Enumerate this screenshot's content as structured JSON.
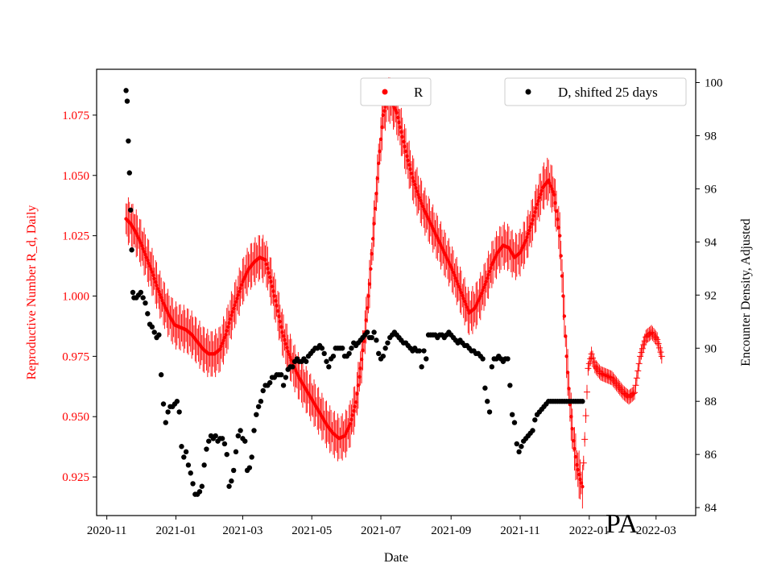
{
  "chart_data": {
    "type": "scatter",
    "title": "",
    "annotation": "PA",
    "xlabel": "Date",
    "ylabel_left": "Reproductive Number R_d, Daily",
    "ylabel_right": "Encounter Density, Adjusted",
    "x_ticks": [
      "2020-11",
      "2021-01",
      "2021-03",
      "2021-05",
      "2021-07",
      "2021-09",
      "2021-11",
      "2022-01",
      "2022-03"
    ],
    "y_left_ticks": [
      "0.925",
      "0.950",
      "0.975",
      "1.000",
      "1.025",
      "1.050",
      "1.075"
    ],
    "y_right_ticks": [
      "84",
      "86",
      "88",
      "90",
      "92",
      "94",
      "96",
      "98",
      "100"
    ],
    "x_range_days": [
      -9,
      520
    ],
    "y_left_range": [
      0.909,
      1.094
    ],
    "y_right_range": [
      83.7,
      100.5
    ],
    "legend_R": "R",
    "legend_D": "D, shifted 25 days",
    "colors": {
      "R": "#ff0000",
      "D": "#000000",
      "left_axis": "#ff0000"
    },
    "R_series": [
      [
        17,
        1.032
      ],
      [
        21,
        1.03
      ],
      [
        25,
        1.027
      ],
      [
        30,
        1.022
      ],
      [
        35,
        1.016
      ],
      [
        40,
        1.01
      ],
      [
        45,
        1.003
      ],
      [
        50,
        0.997
      ],
      [
        55,
        0.992
      ],
      [
        60,
        0.988
      ],
      [
        65,
        0.987
      ],
      [
        70,
        0.986
      ],
      [
        75,
        0.984
      ],
      [
        80,
        0.981
      ],
      [
        85,
        0.978
      ],
      [
        90,
        0.976
      ],
      [
        95,
        0.976
      ],
      [
        100,
        0.978
      ],
      [
        105,
        0.984
      ],
      [
        110,
        0.992
      ],
      [
        115,
        0.999
      ],
      [
        120,
        1.006
      ],
      [
        125,
        1.011
      ],
      [
        130,
        1.014
      ],
      [
        135,
        1.016
      ],
      [
        140,
        1.015
      ],
      [
        145,
        1.006
      ],
      [
        150,
        0.996
      ],
      [
        155,
        0.985
      ],
      [
        160,
        0.977
      ],
      [
        165,
        0.971
      ],
      [
        170,
        0.966
      ],
      [
        175,
        0.962
      ],
      [
        180,
        0.958
      ],
      [
        185,
        0.954
      ],
      [
        190,
        0.95
      ],
      [
        195,
        0.946
      ],
      [
        200,
        0.943
      ],
      [
        205,
        0.941
      ],
      [
        210,
        0.942
      ],
      [
        215,
        0.947
      ],
      [
        220,
        0.956
      ],
      [
        224,
        0.97
      ],
      [
        228,
        0.985
      ],
      [
        232,
        1.005
      ],
      [
        236,
        1.03
      ],
      [
        240,
        1.055
      ],
      [
        244,
        1.075
      ],
      [
        248,
        1.082
      ],
      [
        252,
        1.08
      ],
      [
        256,
        1.076
      ],
      [
        260,
        1.068
      ],
      [
        265,
        1.058
      ],
      [
        270,
        1.049
      ],
      [
        275,
        1.042
      ],
      [
        280,
        1.036
      ],
      [
        285,
        1.031
      ],
      [
        290,
        1.026
      ],
      [
        295,
        1.021
      ],
      [
        300,
        1.016
      ],
      [
        305,
        1.011
      ],
      [
        310,
        1.005
      ],
      [
        315,
        0.999
      ],
      [
        320,
        0.993
      ],
      [
        325,
        0.995
      ],
      [
        330,
        1.0
      ],
      [
        335,
        1.006
      ],
      [
        340,
        1.013
      ],
      [
        345,
        1.018
      ],
      [
        350,
        1.021
      ],
      [
        355,
        1.02
      ],
      [
        360,
        1.016
      ],
      [
        365,
        1.018
      ],
      [
        370,
        1.023
      ],
      [
        375,
        1.03
      ],
      [
        380,
        1.038
      ],
      [
        385,
        1.045
      ],
      [
        390,
        1.048
      ],
      [
        395,
        1.042
      ],
      [
        400,
        1.025
      ],
      [
        403,
        1.0
      ],
      [
        406,
        0.975
      ],
      [
        409,
        0.955
      ],
      [
        412,
        0.94
      ],
      [
        415,
        0.93
      ],
      [
        418,
        0.924
      ],
      [
        420,
        0.921
      ],
      [
        425,
        0.97
      ],
      [
        428,
        0.976
      ],
      [
        431,
        0.971
      ],
      [
        436,
        0.968
      ],
      [
        441,
        0.967
      ],
      [
        446,
        0.966
      ],
      [
        451,
        0.963
      ],
      [
        456,
        0.96
      ],
      [
        461,
        0.958
      ],
      [
        466,
        0.96
      ],
      [
        471,
        0.975
      ],
      [
        476,
        0.983
      ],
      [
        481,
        0.985
      ],
      [
        486,
        0.982
      ],
      [
        490,
        0.975
      ]
    ],
    "D_series": [
      [
        17,
        99.7
      ],
      [
        18,
        99.3
      ],
      [
        19,
        97.8
      ],
      [
        20,
        96.6
      ],
      [
        21,
        95.2
      ],
      [
        22,
        93.7
      ],
      [
        23,
        92.1
      ],
      [
        24,
        91.9
      ],
      [
        26,
        91.9
      ],
      [
        28,
        92.0
      ],
      [
        30,
        92.1
      ],
      [
        32,
        91.9
      ],
      [
        34,
        91.7
      ],
      [
        36,
        91.3
      ],
      [
        38,
        90.9
      ],
      [
        40,
        90.8
      ],
      [
        42,
        90.6
      ],
      [
        44,
        90.4
      ],
      [
        46,
        90.5
      ],
      [
        48,
        89.0
      ],
      [
        50,
        87.9
      ],
      [
        52,
        87.2
      ],
      [
        54,
        87.6
      ],
      [
        56,
        87.8
      ],
      [
        58,
        87.8
      ],
      [
        60,
        87.9
      ],
      [
        62,
        88.0
      ],
      [
        64,
        87.6
      ],
      [
        66,
        86.3
      ],
      [
        68,
        85.9
      ],
      [
        70,
        86.1
      ],
      [
        72,
        85.6
      ],
      [
        74,
        85.3
      ],
      [
        76,
        84.9
      ],
      [
        78,
        84.5
      ],
      [
        80,
        84.5
      ],
      [
        82,
        84.6
      ],
      [
        84,
        84.8
      ],
      [
        86,
        85.6
      ],
      [
        88,
        86.2
      ],
      [
        90,
        86.5
      ],
      [
        92,
        86.7
      ],
      [
        94,
        86.6
      ],
      [
        96,
        86.7
      ],
      [
        98,
        86.5
      ],
      [
        100,
        86.6
      ],
      [
        102,
        86.6
      ],
      [
        104,
        86.4
      ],
      [
        106,
        86.0
      ],
      [
        108,
        84.8
      ],
      [
        110,
        85.0
      ],
      [
        112,
        85.4
      ],
      [
        114,
        86.1
      ],
      [
        116,
        86.7
      ],
      [
        118,
        86.9
      ],
      [
        120,
        86.6
      ],
      [
        122,
        86.5
      ],
      [
        124,
        85.4
      ],
      [
        126,
        85.5
      ],
      [
        128,
        85.9
      ],
      [
        130,
        86.9
      ],
      [
        132,
        87.5
      ],
      [
        134,
        87.8
      ],
      [
        136,
        88.0
      ],
      [
        138,
        88.4
      ],
      [
        140,
        88.6
      ],
      [
        142,
        88.6
      ],
      [
        144,
        88.7
      ],
      [
        146,
        88.9
      ],
      [
        148,
        88.9
      ],
      [
        150,
        89.0
      ],
      [
        152,
        89.0
      ],
      [
        154,
        89.0
      ],
      [
        156,
        88.6
      ],
      [
        158,
        88.9
      ],
      [
        160,
        89.2
      ],
      [
        162,
        89.3
      ],
      [
        164,
        89.3
      ],
      [
        166,
        89.5
      ],
      [
        168,
        89.6
      ],
      [
        170,
        89.5
      ],
      [
        172,
        89.5
      ],
      [
        174,
        89.6
      ],
      [
        176,
        89.5
      ],
      [
        178,
        89.7
      ],
      [
        180,
        89.8
      ],
      [
        182,
        89.9
      ],
      [
        184,
        90.0
      ],
      [
        186,
        90.0
      ],
      [
        188,
        90.1
      ],
      [
        190,
        90.0
      ],
      [
        192,
        89.8
      ],
      [
        194,
        89.5
      ],
      [
        196,
        89.3
      ],
      [
        198,
        89.6
      ],
      [
        200,
        89.7
      ],
      [
        202,
        90.0
      ],
      [
        204,
        90.0
      ],
      [
        206,
        90.0
      ],
      [
        208,
        90.0
      ],
      [
        210,
        89.7
      ],
      [
        212,
        89.7
      ],
      [
        214,
        89.8
      ],
      [
        216,
        90.0
      ],
      [
        218,
        90.2
      ],
      [
        220,
        90.1
      ],
      [
        222,
        90.2
      ],
      [
        224,
        90.3
      ],
      [
        226,
        90.4
      ],
      [
        228,
        90.5
      ],
      [
        230,
        90.6
      ],
      [
        232,
        90.4
      ],
      [
        234,
        90.4
      ],
      [
        236,
        90.6
      ],
      [
        238,
        90.3
      ],
      [
        240,
        89.8
      ],
      [
        242,
        89.6
      ],
      [
        244,
        89.7
      ],
      [
        246,
        90.0
      ],
      [
        248,
        90.2
      ],
      [
        250,
        90.4
      ],
      [
        252,
        90.5
      ],
      [
        254,
        90.6
      ],
      [
        256,
        90.5
      ],
      [
        258,
        90.4
      ],
      [
        260,
        90.3
      ],
      [
        262,
        90.2
      ],
      [
        264,
        90.2
      ],
      [
        266,
        90.1
      ],
      [
        268,
        90.0
      ],
      [
        270,
        89.9
      ],
      [
        272,
        90.0
      ],
      [
        274,
        89.9
      ],
      [
        276,
        89.9
      ],
      [
        278,
        89.3
      ],
      [
        280,
        89.9
      ],
      [
        282,
        89.6
      ],
      [
        284,
        90.5
      ],
      [
        286,
        90.5
      ],
      [
        288,
        90.5
      ],
      [
        290,
        90.5
      ],
      [
        292,
        90.4
      ],
      [
        294,
        90.5
      ],
      [
        296,
        90.5
      ],
      [
        298,
        90.4
      ],
      [
        300,
        90.5
      ],
      [
        302,
        90.6
      ],
      [
        304,
        90.5
      ],
      [
        306,
        90.4
      ],
      [
        308,
        90.3
      ],
      [
        310,
        90.2
      ],
      [
        312,
        90.3
      ],
      [
        314,
        90.2
      ],
      [
        316,
        90.1
      ],
      [
        318,
        90.1
      ],
      [
        320,
        90.0
      ],
      [
        322,
        89.9
      ],
      [
        324,
        89.9
      ],
      [
        326,
        89.8
      ],
      [
        328,
        89.8
      ],
      [
        330,
        89.7
      ],
      [
        332,
        89.6
      ],
      [
        334,
        88.5
      ],
      [
        336,
        88.0
      ],
      [
        338,
        87.6
      ],
      [
        340,
        89.3
      ],
      [
        342,
        89.6
      ],
      [
        344,
        89.6
      ],
      [
        346,
        89.7
      ],
      [
        348,
        89.6
      ],
      [
        350,
        89.5
      ],
      [
        352,
        89.6
      ],
      [
        354,
        89.6
      ],
      [
        356,
        88.6
      ],
      [
        358,
        87.5
      ],
      [
        360,
        87.2
      ],
      [
        362,
        86.4
      ],
      [
        364,
        86.1
      ],
      [
        366,
        86.3
      ],
      [
        368,
        86.5
      ],
      [
        370,
        86.6
      ],
      [
        372,
        86.7
      ],
      [
        374,
        86.8
      ],
      [
        376,
        86.9
      ],
      [
        378,
        87.3
      ],
      [
        380,
        87.5
      ],
      [
        382,
        87.6
      ],
      [
        384,
        87.7
      ],
      [
        386,
        87.8
      ],
      [
        388,
        87.9
      ],
      [
        390,
        88.0
      ],
      [
        392,
        88.0
      ],
      [
        394,
        88.0
      ],
      [
        396,
        88.0
      ],
      [
        398,
        88.0
      ],
      [
        400,
        88.0
      ],
      [
        402,
        88.0
      ],
      [
        404,
        88.0
      ],
      [
        406,
        88.0
      ],
      [
        408,
        88.0
      ],
      [
        410,
        88.0
      ],
      [
        412,
        88.0
      ],
      [
        414,
        88.0
      ],
      [
        416,
        88.0
      ],
      [
        418,
        88.0
      ],
      [
        420,
        88.0
      ]
    ]
  }
}
